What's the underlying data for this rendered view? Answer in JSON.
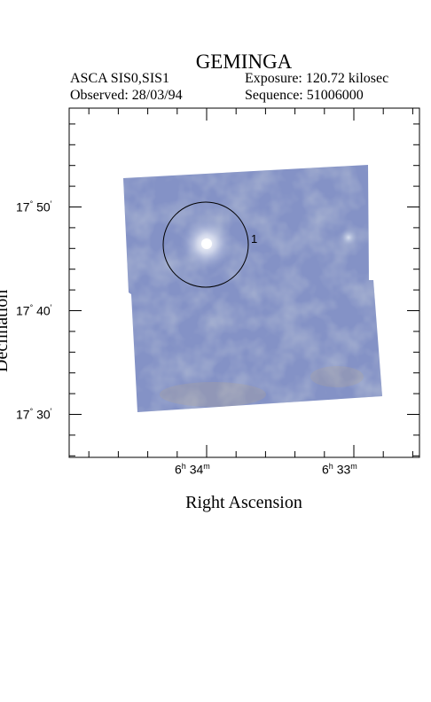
{
  "title": "GEMINGA",
  "header": {
    "instrument": "ASCA SIS0,SIS1",
    "exposure": "Exposure: 120.72 kilosec",
    "observed": "Observed: 28/03/94",
    "sequence": "Sequence: 51006000"
  },
  "axes": {
    "xlabel": "Right Ascension",
    "ylabel": "Declination",
    "x_ticks": [
      {
        "h": "6",
        "m": "34",
        "hs": "h",
        "ms": "m"
      },
      {
        "h": "6",
        "m": "33",
        "hs": "h",
        "ms": "m"
      }
    ],
    "y_ticks": [
      {
        "deg": "17",
        "min": "50",
        "ds": "°",
        "ms": "′"
      },
      {
        "deg": "17",
        "min": "40",
        "ds": "°",
        "ms": "′"
      },
      {
        "deg": "17",
        "min": "30",
        "ds": "°",
        "ms": "′"
      }
    ]
  },
  "source_marker": {
    "label": "1"
  },
  "colors": {
    "image_fill": "#7f8fbf",
    "circle": "#000000"
  }
}
